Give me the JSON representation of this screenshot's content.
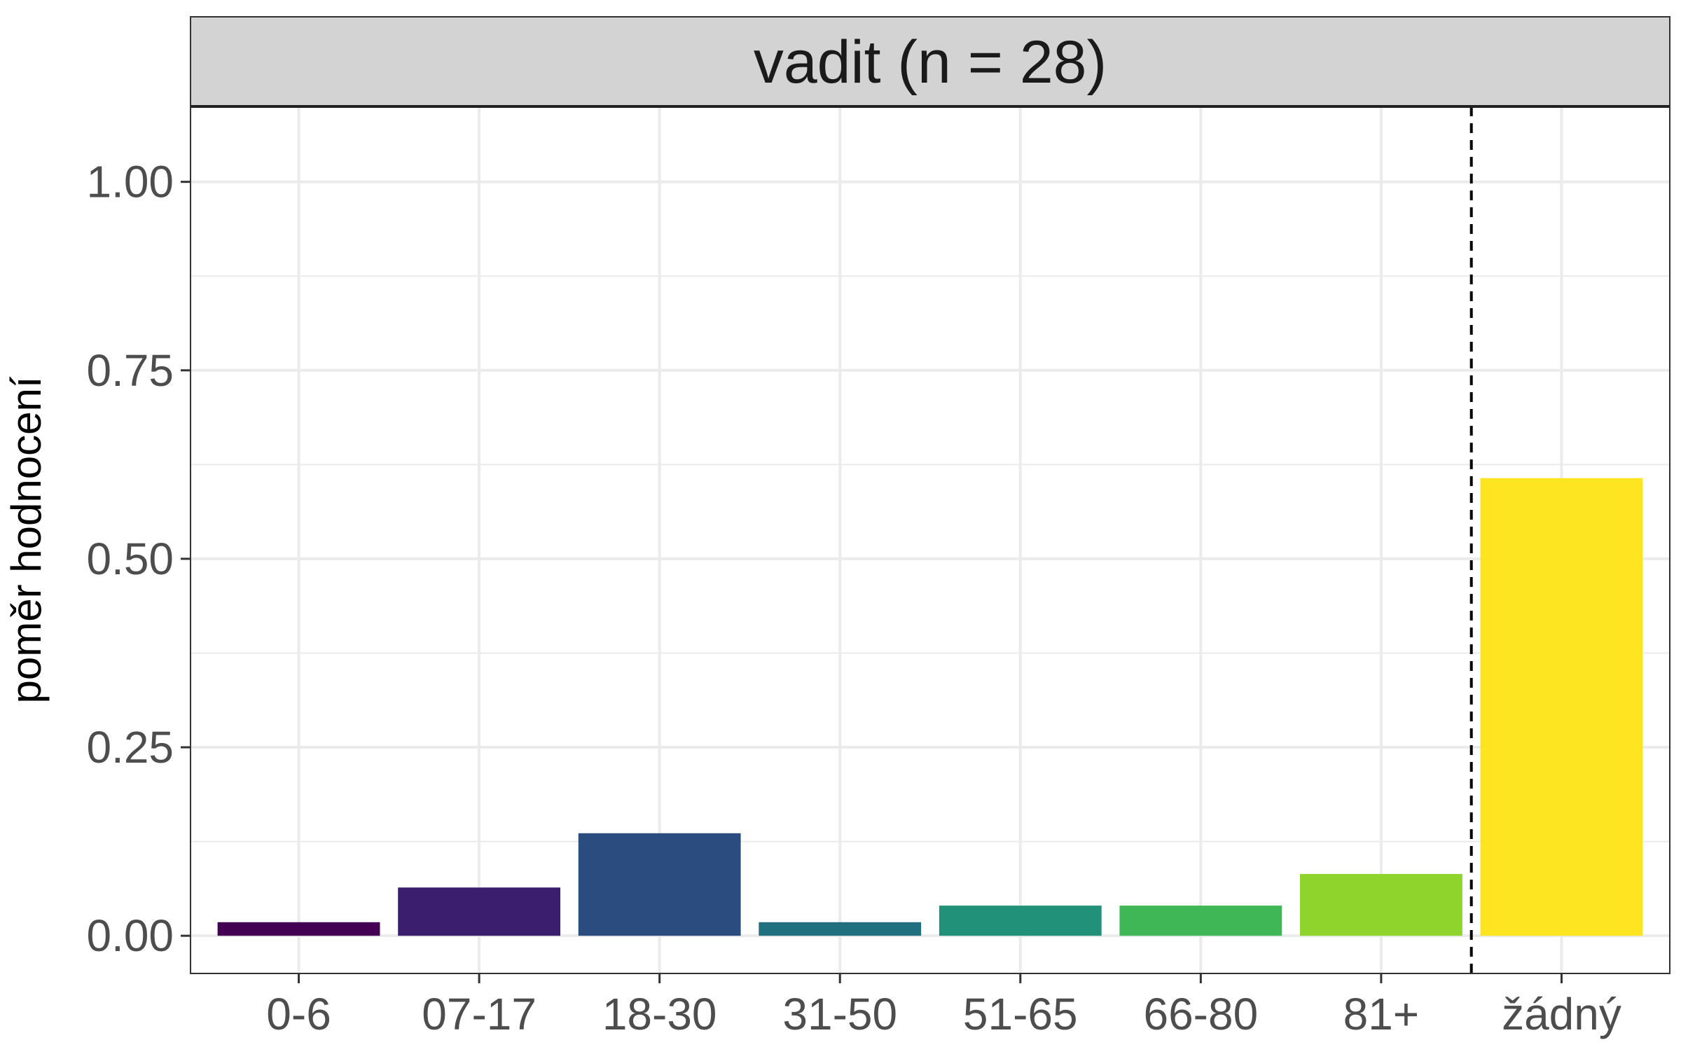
{
  "chart_data": {
    "type": "bar",
    "facet_label": "vadit (n = 28)",
    "categories": [
      "0-6",
      "07-17",
      "18-30",
      "31-50",
      "51-65",
      "66-80",
      "81+",
      "žádný"
    ],
    "values": [
      0.018,
      0.064,
      0.136,
      0.018,
      0.04,
      0.04,
      0.082,
      0.607
    ],
    "colors": [
      "#440154",
      "#3b1f6e",
      "#2b4c7e",
      "#21707f",
      "#22917a",
      "#40b756",
      "#8ed42c",
      "#fde621"
    ],
    "ylabel": "poměr hodnocení",
    "xlabel": "",
    "ylim": [
      -0.05,
      1.1
    ],
    "yticks": [
      0.0,
      0.25,
      0.5,
      0.75,
      1.0
    ],
    "ytick_labels": [
      "0.00",
      "0.25",
      "0.50",
      "0.75",
      "1.00"
    ],
    "vline_between": [
      "81+",
      "žádný"
    ],
    "vline_style": "dashed",
    "grid": true,
    "legend": "none",
    "strip_color": "#d3d3d3",
    "border_color": "#333333",
    "grid_color": "#ebebeb"
  }
}
